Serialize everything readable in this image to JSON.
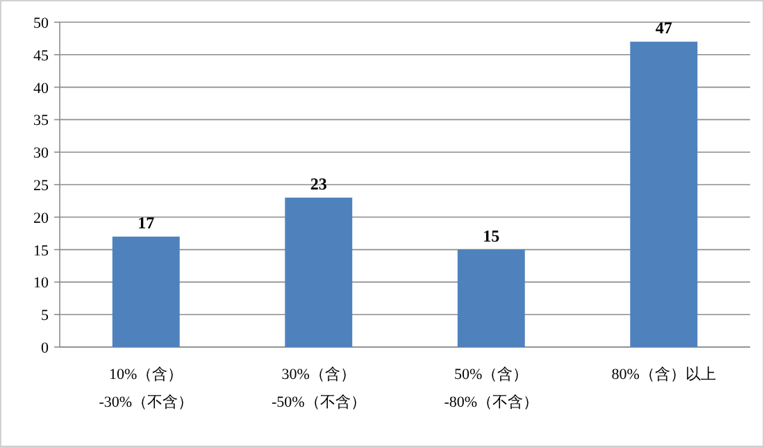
{
  "chart_data": {
    "type": "bar",
    "categories": [
      "10%（含）\n-30%（不含）",
      "30%（含）\n-50%（不含）",
      "50%（含）\n-80%（不含）",
      "80%（含）以上"
    ],
    "values": [
      17,
      23,
      15,
      47
    ],
    "color": "#4f81bd",
    "ylim": [
      0,
      50
    ],
    "yticks": [
      0,
      5,
      10,
      15,
      20,
      25,
      30,
      35,
      40,
      45,
      50
    ],
    "grid": "y",
    "data_labels": true
  }
}
